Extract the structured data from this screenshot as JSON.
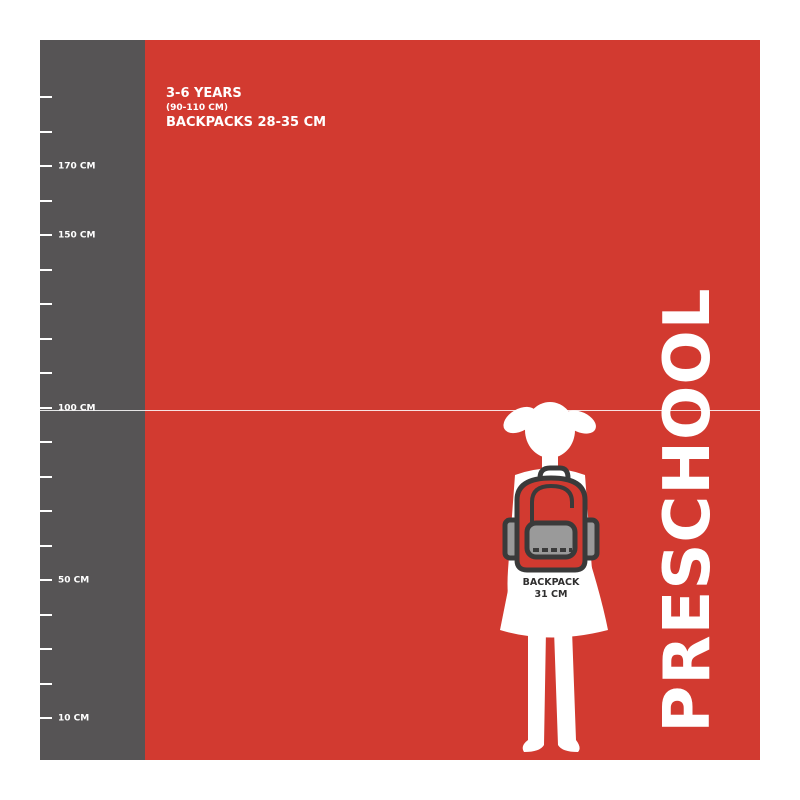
{
  "header": {
    "age": "3-6 YEARS",
    "height_range": "(90-110 CM)",
    "backpack_range": "BACKPACKS 28-35 CM"
  },
  "title": "PRESCHOOL",
  "ruler": {
    "unit": "CM",
    "ticks": [
      10,
      20,
      30,
      40,
      50,
      60,
      70,
      80,
      90,
      100,
      110,
      120,
      130,
      140,
      150,
      160,
      170,
      180,
      190
    ],
    "labels": [
      {
        "value": 170,
        "text": "170 CM"
      },
      {
        "value": 150,
        "text": "150 CM"
      },
      {
        "value": 100,
        "text": "100 CM"
      },
      {
        "value": 50,
        "text": "50 CM"
      },
      {
        "value": 10,
        "text": "10 CM"
      }
    ]
  },
  "figure": {
    "backpack_label": "BACKPACK",
    "backpack_size": "31 CM"
  },
  "colors": {
    "background": "#d23a30",
    "ruler": "#565455",
    "text": "#ffffff",
    "backpack_outline": "#3a3a3a",
    "backpack_pocket": "#9a9a9a"
  }
}
